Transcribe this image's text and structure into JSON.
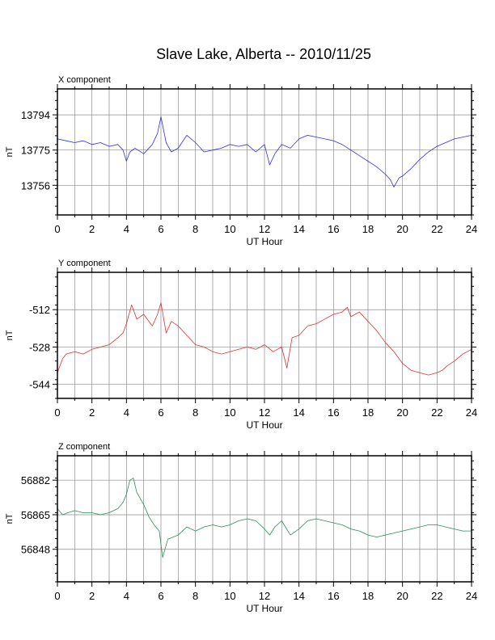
{
  "title": "Slave Lake, Alberta -- 2010/11/25",
  "chart_data": [
    {
      "type": "line",
      "panel_title": "X component",
      "xlabel": "UT Hour",
      "ylabel": "nT",
      "xlim": [
        0,
        24
      ],
      "x_ticks": [
        0,
        2,
        4,
        6,
        8,
        10,
        12,
        14,
        16,
        18,
        20,
        22,
        24
      ],
      "ylim": [
        13740,
        13808
      ],
      "y_ticks": [
        13794,
        13775,
        13756
      ],
      "grid": true,
      "color": "#3030e0",
      "series": [
        {
          "x": [
            0,
            0.5,
            1,
            1.5,
            2,
            2.5,
            3,
            3.5,
            3.8,
            4,
            4.2,
            4.5,
            5,
            5.5,
            5.8,
            6,
            6.3,
            6.6,
            7,
            7.5,
            8,
            8.5,
            9,
            9.5,
            10,
            10.5,
            11,
            11.5,
            12,
            12.3,
            12.6,
            13,
            13.5,
            14,
            14.5,
            15,
            15.5,
            16,
            16.5,
            17,
            17.5,
            18,
            18.5,
            19,
            19.3,
            19.5,
            19.8,
            20,
            20.5,
            21,
            21.5,
            22,
            22.5,
            23,
            23.5,
            24
          ],
          "y": [
            13781,
            13780,
            13779,
            13780,
            13778,
            13779,
            13777,
            13778,
            13775,
            13769,
            13774,
            13776,
            13773,
            13778,
            13784,
            13793,
            13779,
            13774,
            13776,
            13783,
            13779,
            13774,
            13775,
            13776,
            13778,
            13777,
            13778,
            13774,
            13778,
            13767,
            13773,
            13778,
            13776,
            13781,
            13783,
            13782,
            13781,
            13780,
            13778,
            13775,
            13772,
            13769,
            13766,
            13762,
            13759,
            13755,
            13760,
            13761,
            13765,
            13770,
            13774,
            13777,
            13779,
            13781,
            13782,
            13783
          ]
        }
      ]
    },
    {
      "type": "line",
      "panel_title": "Y component",
      "xlabel": "UT Hour",
      "ylabel": "nT",
      "xlim": [
        0,
        24
      ],
      "x_ticks": [
        0,
        2,
        4,
        6,
        8,
        10,
        12,
        14,
        16,
        18,
        20,
        22,
        24
      ],
      "ylim": [
        -550,
        -496
      ],
      "y_ticks": [
        -512,
        -528,
        -544
      ],
      "grid": true,
      "color": "#e03030",
      "series": [
        {
          "x": [
            0,
            0.3,
            0.5,
            1,
            1.5,
            2,
            2.5,
            3,
            3.5,
            3.8,
            4,
            4.3,
            4.6,
            5,
            5.5,
            5.8,
            6,
            6.3,
            6.6,
            7,
            7.5,
            8,
            8.5,
            9,
            9.5,
            10,
            10.5,
            11,
            11.5,
            12,
            12.5,
            13,
            13.3,
            13.6,
            14,
            14.5,
            15,
            15.5,
            16,
            16.5,
            16.8,
            17,
            17.5,
            18,
            18.5,
            19,
            19.5,
            20,
            20.5,
            21,
            21.5,
            22,
            22.3,
            22.6,
            23,
            23.5,
            24
          ],
          "y": [
            -539,
            -533,
            -531,
            -530,
            -531,
            -529,
            -528,
            -527,
            -524,
            -522,
            -518,
            -510,
            -516,
            -514,
            -519,
            -514,
            -509,
            -522,
            -517,
            -519,
            -523,
            -527,
            -528,
            -530,
            -531,
            -530,
            -529,
            -528,
            -529,
            -527,
            -530,
            -528,
            -537,
            -524,
            -523,
            -519,
            -518,
            -516,
            -514,
            -513,
            -511,
            -515,
            -513,
            -517,
            -521,
            -526,
            -530,
            -535,
            -538,
            -539,
            -540,
            -539,
            -538,
            -536,
            -534,
            -531,
            -529
          ]
        }
      ]
    },
    {
      "type": "line",
      "panel_title": "Z component",
      "xlabel": "UT Hour",
      "ylabel": "nT",
      "xlim": [
        0,
        24
      ],
      "x_ticks": [
        0,
        2,
        4,
        6,
        8,
        10,
        12,
        14,
        16,
        18,
        20,
        22,
        24
      ],
      "ylim": [
        56832,
        56894
      ],
      "y_ticks": [
        56882,
        56865,
        56848
      ],
      "grid": true,
      "color": "#2e8b57",
      "series": [
        {
          "x": [
            0,
            0.3,
            0.6,
            1,
            1.5,
            2,
            2.5,
            3,
            3.5,
            3.8,
            4,
            4.2,
            4.4,
            4.6,
            5,
            5.3,
            5.6,
            5.9,
            6.1,
            6.4,
            7,
            7.5,
            8,
            8.5,
            9,
            9.5,
            10,
            10.5,
            11,
            11.5,
            12,
            12.3,
            12.6,
            13,
            13.5,
            14,
            14.5,
            15,
            15.5,
            16,
            16.5,
            17,
            17.5,
            18,
            18.5,
            19,
            19.5,
            20,
            20.5,
            21,
            21.5,
            22,
            22.5,
            23,
            23.5,
            24
          ],
          "y": [
            56868,
            56865,
            56866,
            56867,
            56866,
            56866,
            56865,
            56866,
            56868,
            56871,
            56875,
            56882,
            56883,
            56876,
            56870,
            56864,
            56860,
            56857,
            56844,
            56853,
            56855,
            56859,
            56857,
            56859,
            56860,
            56859,
            56860,
            56862,
            56863,
            56862,
            56858,
            56855,
            56859,
            56862,
            56855,
            56858,
            56862,
            56863,
            56862,
            56861,
            56860,
            56858,
            56857,
            56855,
            56854,
            56855,
            56856,
            56857,
            56858,
            56859,
            56860,
            56860,
            56859,
            56858,
            56857,
            56857
          ]
        }
      ]
    }
  ]
}
